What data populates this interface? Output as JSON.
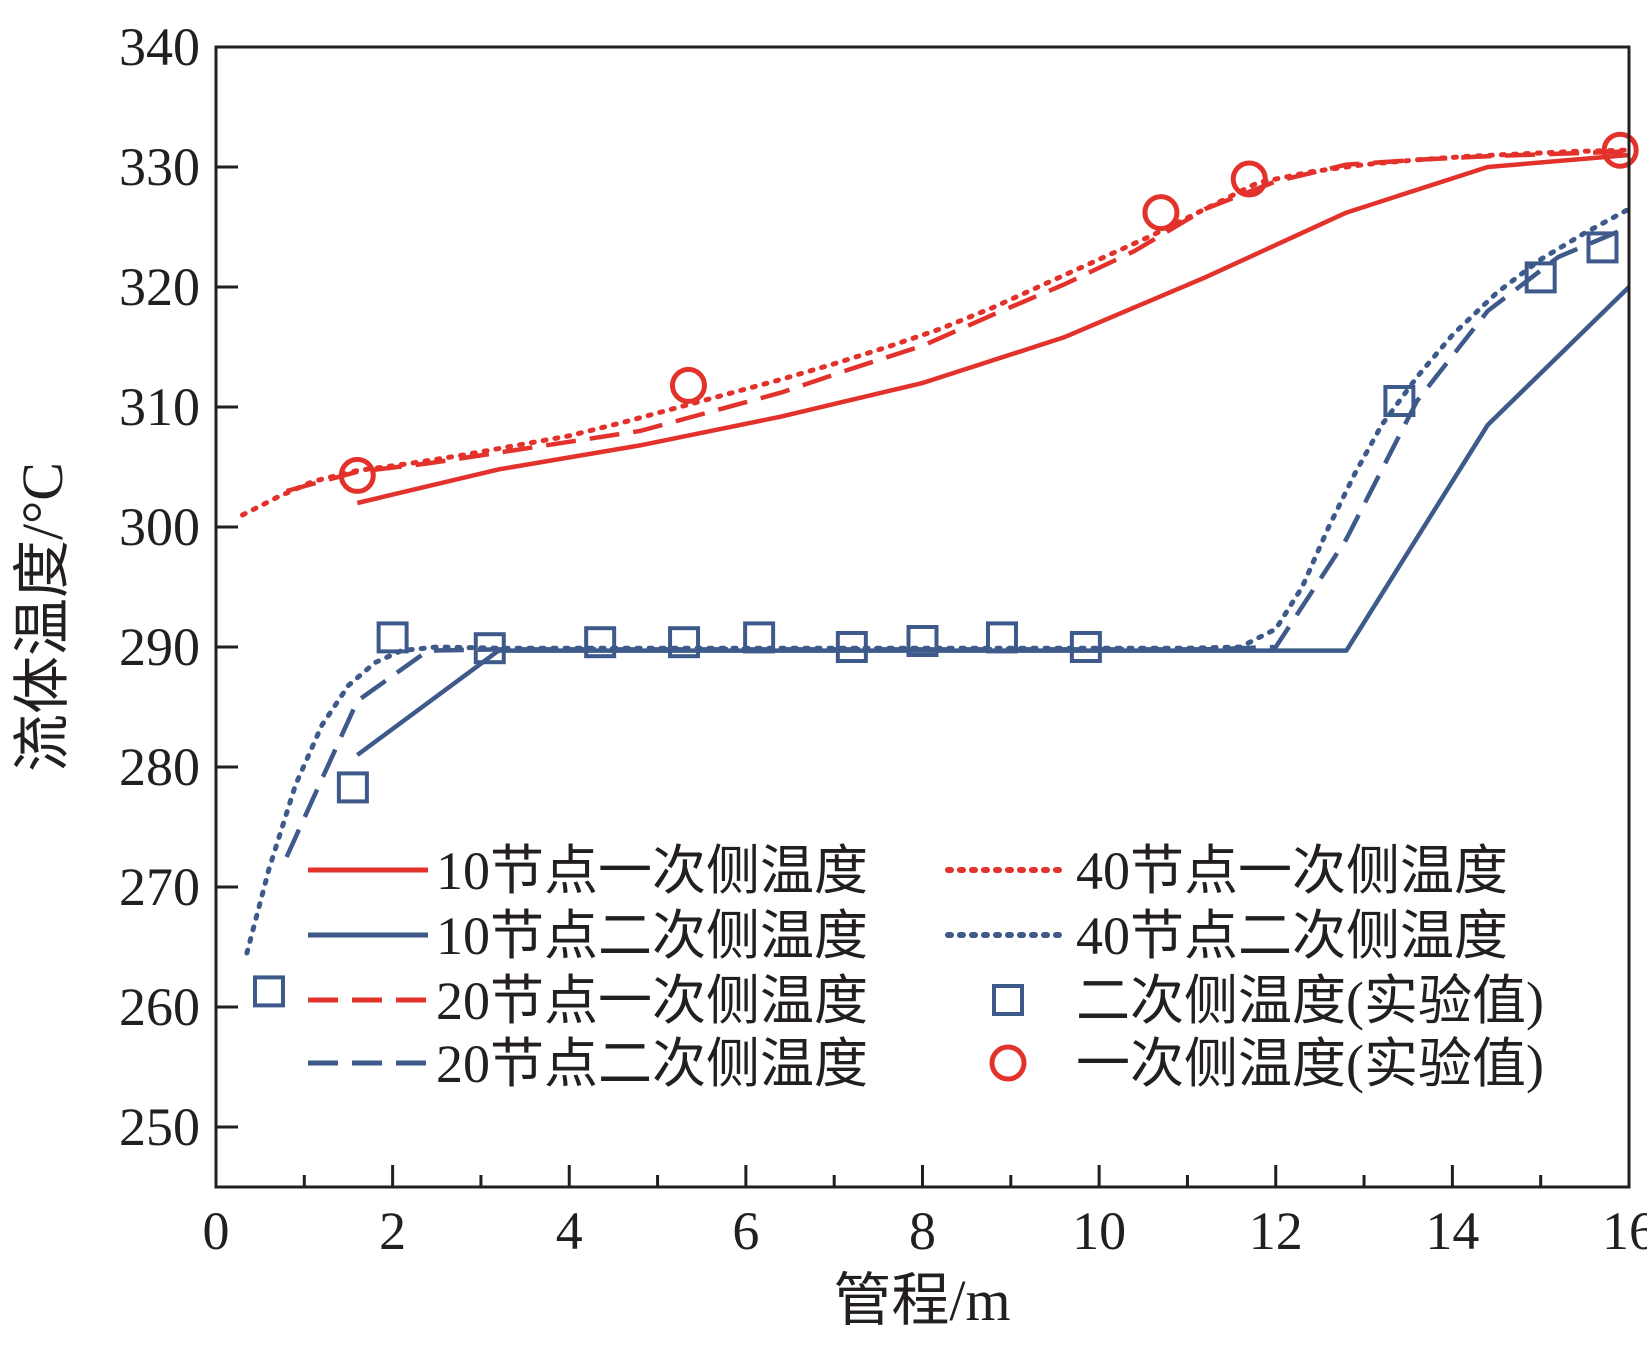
{
  "chart_data": {
    "type": "line",
    "xlabel": "管程/m",
    "ylabel": "流体温度/°C",
    "xlim": [
      0,
      16
    ],
    "ylim": [
      245,
      340
    ],
    "xticks": [
      0,
      2,
      4,
      6,
      8,
      10,
      12,
      14,
      16
    ],
    "yticks": [
      250,
      260,
      270,
      280,
      290,
      300,
      310,
      320,
      330,
      340
    ],
    "grid": false,
    "legend_position": "lower-center",
    "colors": {
      "primary": "#e3322b",
      "secondary": "#3d5a8a",
      "axis": "#231f20"
    },
    "series": [
      {
        "name": "10节点一次侧温度",
        "color": "#e3322b",
        "dash": "solid",
        "x": [
          1.6,
          3.2,
          4.8,
          6.4,
          8.0,
          9.6,
          11.2,
          12.8,
          14.4,
          16.0
        ],
        "y": [
          302.0,
          304.8,
          306.8,
          309.2,
          312.0,
          315.8,
          320.8,
          326.2,
          330.0,
          331.0
        ]
      },
      {
        "name": "10节点二次侧温度",
        "color": "#3d5a8a",
        "dash": "solid",
        "x": [
          1.6,
          3.2,
          4.8,
          6.4,
          8.0,
          9.6,
          11.2,
          12.8,
          14.4,
          16.0
        ],
        "y": [
          281.0,
          289.7,
          289.7,
          289.7,
          289.7,
          289.7,
          289.7,
          289.7,
          308.5,
          320.0
        ]
      },
      {
        "name": "20节点一次侧温度",
        "color": "#e3322b",
        "dash": "dashed",
        "x": [
          0.8,
          1.6,
          2.4,
          3.2,
          4.0,
          4.8,
          5.6,
          6.4,
          7.2,
          8.0,
          8.8,
          9.6,
          10.4,
          11.2,
          12.0,
          12.8,
          13.6,
          14.4,
          15.2,
          16.0
        ],
        "y": [
          303.0,
          304.6,
          305.3,
          306.2,
          307.1,
          308.0,
          309.6,
          311.2,
          313.2,
          315.1,
          317.7,
          320.2,
          323.0,
          326.5,
          328.8,
          330.2,
          330.6,
          330.9,
          331.1,
          331.3
        ]
      },
      {
        "name": "20节点二次侧温度",
        "color": "#3d5a8a",
        "dash": "dashed",
        "x": [
          0.8,
          1.6,
          2.4,
          3.2,
          4.0,
          4.8,
          5.6,
          6.4,
          7.2,
          8.0,
          8.8,
          9.6,
          10.4,
          11.2,
          12.0,
          12.8,
          13.6,
          14.4,
          15.2,
          16.0
        ],
        "y": [
          272.5,
          285.5,
          289.7,
          289.8,
          289.8,
          289.8,
          289.8,
          289.8,
          289.8,
          289.8,
          289.8,
          289.8,
          289.8,
          289.8,
          290.0,
          299.0,
          310.5,
          318.0,
          322.5,
          325.0
        ]
      },
      {
        "name": "40节点一次侧温度",
        "color": "#e3322b",
        "dash": "dotted",
        "x": [
          0.3,
          0.7,
          1.1,
          1.6,
          2.2,
          2.8,
          3.4,
          4.0,
          4.6,
          5.2,
          5.8,
          6.4,
          7.0,
          7.6,
          8.2,
          8.8,
          9.4,
          10.0,
          10.6,
          11.2,
          11.8,
          12.4,
          13.0,
          13.6,
          14.2,
          14.8,
          15.4,
          16.0
        ],
        "y": [
          301.0,
          302.5,
          303.8,
          304.7,
          305.3,
          306.0,
          306.8,
          307.6,
          308.7,
          309.9,
          311.1,
          312.3,
          313.6,
          315.0,
          316.5,
          318.3,
          320.3,
          322.3,
          324.3,
          326.5,
          328.7,
          329.6,
          330.2,
          330.6,
          330.9,
          331.1,
          331.3,
          331.4
        ]
      },
      {
        "name": "40节点二次侧温度",
        "color": "#3d5a8a",
        "dash": "dotted",
        "x": [
          0.35,
          0.6,
          0.9,
          1.2,
          1.5,
          1.8,
          2.1,
          2.5,
          3.2,
          4.0,
          5.0,
          6.0,
          7.0,
          8.0,
          9.0,
          10.0,
          11.0,
          11.6,
          12.0,
          12.3,
          12.6,
          12.9,
          13.2,
          13.6,
          14.0,
          14.5,
          15.0,
          15.5,
          16.0
        ],
        "y": [
          264.5,
          271.5,
          278.5,
          283.5,
          286.8,
          288.7,
          289.7,
          290.0,
          289.9,
          289.9,
          289.9,
          289.9,
          289.9,
          289.9,
          289.9,
          289.9,
          289.9,
          290.0,
          291.5,
          295.0,
          300.0,
          304.5,
          308.5,
          312.5,
          316.0,
          319.5,
          322.3,
          324.5,
          326.5
        ]
      },
      {
        "name": "二次侧温度(实验值)",
        "color": "#3d5a8a",
        "marker": "square",
        "x": [
          0.6,
          1.55,
          2.0,
          3.1,
          4.35,
          5.3,
          6.15,
          7.2,
          8.0,
          8.9,
          9.85,
          13.4,
          15.0,
          15.7
        ],
        "y": [
          261.3,
          278.3,
          290.8,
          289.9,
          290.4,
          290.4,
          290.8,
          290.0,
          290.5,
          290.8,
          290.0,
          310.5,
          320.8,
          323.3
        ]
      },
      {
        "name": "一次侧温度(实验值)",
        "color": "#e3322b",
        "marker": "circle",
        "x": [
          1.6,
          5.35,
          10.7,
          11.7,
          15.9
        ],
        "y": [
          304.3,
          311.8,
          326.2,
          329.0,
          331.4
        ]
      }
    ]
  }
}
